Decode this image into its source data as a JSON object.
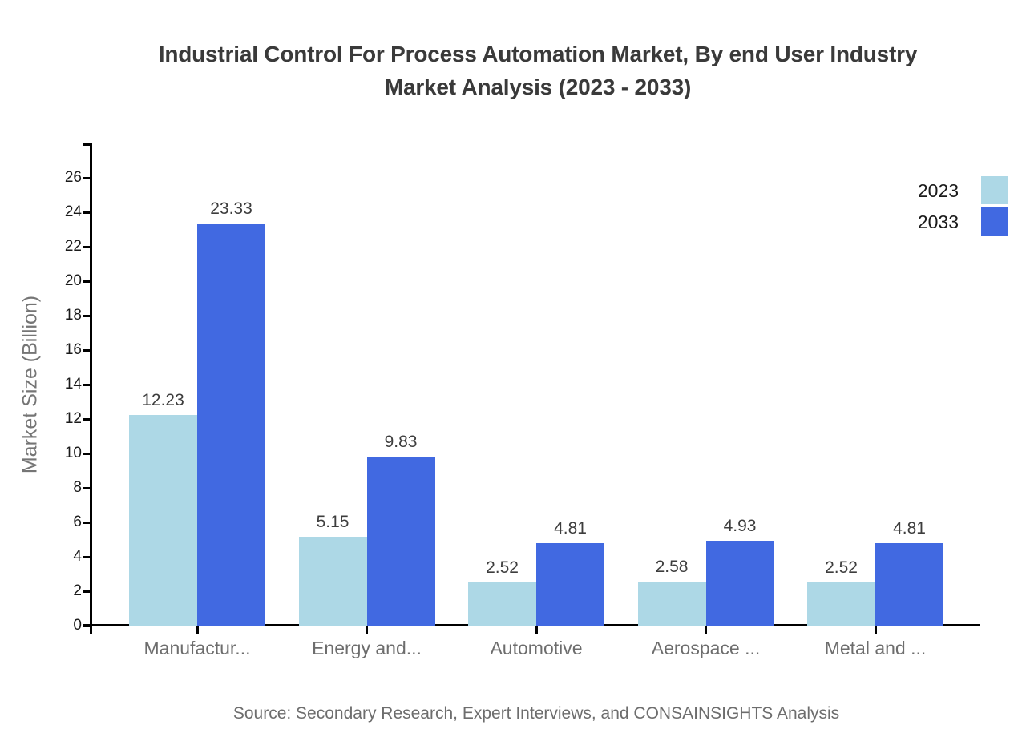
{
  "title": {
    "line1": "Industrial Control For Process Automation Market, By end User Industry",
    "line2": "Market Analysis (2023 - 2033)"
  },
  "source_note": "Source: Secondary Research, Expert Interviews, and CONSAINSIGHTS Analysis",
  "chart_data": {
    "type": "bar",
    "title": "Industrial Control For Process Automation Market, By end User Industry Market Analysis (2023 - 2033)",
    "categories": [
      "Manufactur...",
      "Energy and...",
      "Automotive",
      "Aerospace ...",
      "Metal and ..."
    ],
    "series": [
      {
        "name": "2023",
        "color": "#ADD8E6",
        "values": [
          12.23,
          5.15,
          2.52,
          2.58,
          2.52
        ]
      },
      {
        "name": "2033",
        "color": "#4169E1",
        "values": [
          23.33,
          9.83,
          4.81,
          4.93,
          4.81
        ]
      }
    ],
    "xlabel": "",
    "ylabel": "Market Size (Billion)",
    "ylim": [
      0,
      28
    ],
    "yticks": [
      0,
      2,
      4,
      6,
      8,
      10,
      12,
      14,
      16,
      18,
      20,
      22,
      24,
      26
    ],
    "grid": false,
    "legend_position": "top-right",
    "data_labels": true
  },
  "colors": {
    "axis": "#000000",
    "title_text": "#3a3a3a",
    "value_label_text": "#3d3d3d",
    "y_tick_text": "#1a1a1a",
    "category_text": "#6d6d6d",
    "y_axis_title_text": "#757575",
    "source_text": "#6d6d6d",
    "legend_text": "#1a1a1a",
    "series_2023": "#ADD8E6",
    "series_2033": "#4169E1"
  }
}
